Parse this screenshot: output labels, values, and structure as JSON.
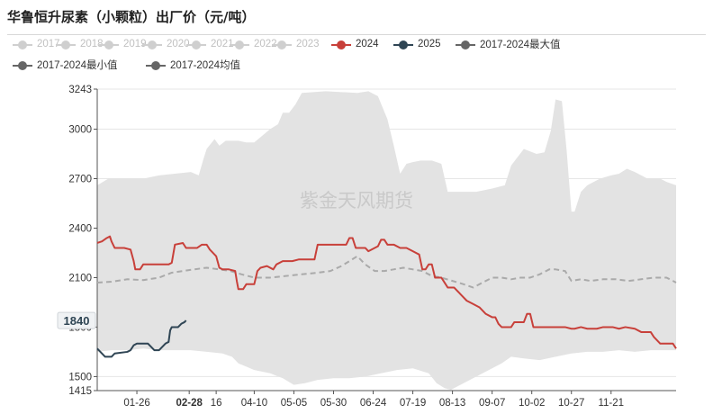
{
  "chart": {
    "title": "华鲁恒升尿素（小颗粒）出厂价（元/吨）",
    "watermark": "紫金天风期货",
    "legend": [
      {
        "label": "2017",
        "color": "#cfcfcf",
        "inactive": true
      },
      {
        "label": "2018",
        "color": "#cfcfcf",
        "inactive": true
      },
      {
        "label": "2019",
        "color": "#cfcfcf",
        "inactive": true
      },
      {
        "label": "2020",
        "color": "#cfcfcf",
        "inactive": true
      },
      {
        "label": "2021",
        "color": "#cfcfcf",
        "inactive": true
      },
      {
        "label": "2022",
        "color": "#cfcfcf",
        "inactive": true
      },
      {
        "label": "2023",
        "color": "#cfcfcf",
        "inactive": true
      },
      {
        "label": "2024",
        "color": "#c8403a",
        "inactive": false
      },
      {
        "label": "2025",
        "color": "#2f4554",
        "inactive": false
      },
      {
        "label": "2017-2024最大值",
        "color": "#666666",
        "inactive": false
      },
      {
        "label": "2017-2024最小值",
        "color": "#666666",
        "inactive": false
      },
      {
        "label": "2017-2024均值",
        "color": "#666666",
        "inactive": false
      }
    ],
    "tooltip_value": "1840"
  },
  "chart_data": {
    "type": "line",
    "title": "华鲁恒升尿素（小颗粒）出厂价（元/吨）",
    "ylim": [
      1415,
      3243
    ],
    "yticks": [
      "3243",
      "3000",
      "2700",
      "2400",
      "2100",
      "1800",
      "1500",
      "1415"
    ],
    "xlim_day": [
      1,
      366
    ],
    "xticks": [
      {
        "label": "01-26",
        "day": 26
      },
      {
        "label": "02-28",
        "day": 59,
        "highlight": true
      },
      {
        "label": "16",
        "day": 76
      },
      {
        "label": "04-10",
        "day": 100
      },
      {
        "label": "05-05",
        "day": 125
      },
      {
        "label": "05-30",
        "day": 150
      },
      {
        "label": "06-24",
        "day": 175
      },
      {
        "label": "07-19",
        "day": 200
      },
      {
        "label": "08-13",
        "day": 225
      },
      {
        "label": "09-07",
        "day": 250
      },
      {
        "label": "10-02",
        "day": 275
      },
      {
        "label": "10-27",
        "day": 300
      },
      {
        "label": "11-21",
        "day": 325
      }
    ],
    "band_max": [
      [
        1,
        2660
      ],
      [
        8,
        2700
      ],
      [
        15,
        2700
      ],
      [
        30,
        2700
      ],
      [
        40,
        2720
      ],
      [
        50,
        2730
      ],
      [
        60,
        2740
      ],
      [
        65,
        2720
      ],
      [
        68,
        2820
      ],
      [
        70,
        2880
      ],
      [
        75,
        2940
      ],
      [
        78,
        2900
      ],
      [
        82,
        2930
      ],
      [
        90,
        2930
      ],
      [
        95,
        2920
      ],
      [
        100,
        2920
      ],
      [
        105,
        2960
      ],
      [
        110,
        3000
      ],
      [
        115,
        3030
      ],
      [
        118,
        3100
      ],
      [
        122,
        3100
      ],
      [
        126,
        3150
      ],
      [
        130,
        3220
      ],
      [
        145,
        3230
      ],
      [
        165,
        3220
      ],
      [
        172,
        3230
      ],
      [
        178,
        3200
      ],
      [
        184,
        3060
      ],
      [
        188,
        2900
      ],
      [
        192,
        2730
      ],
      [
        196,
        2790
      ],
      [
        200,
        2800
      ],
      [
        205,
        2810
      ],
      [
        212,
        2810
      ],
      [
        218,
        2790
      ],
      [
        222,
        2620
      ],
      [
        225,
        2620
      ],
      [
        232,
        2620
      ],
      [
        240,
        2620
      ],
      [
        250,
        2640
      ],
      [
        258,
        2660
      ],
      [
        262,
        2780
      ],
      [
        270,
        2880
      ],
      [
        278,
        2850
      ],
      [
        283,
        2860
      ],
      [
        287,
        2990
      ],
      [
        290,
        3180
      ],
      [
        294,
        3170
      ],
      [
        297,
        2870
      ],
      [
        300,
        2500
      ],
      [
        302,
        2500
      ],
      [
        306,
        2620
      ],
      [
        310,
        2660
      ],
      [
        318,
        2700
      ],
      [
        325,
        2720
      ],
      [
        330,
        2730
      ],
      [
        335,
        2760
      ],
      [
        340,
        2740
      ],
      [
        348,
        2700
      ],
      [
        356,
        2700
      ],
      [
        360,
        2680
      ],
      [
        366,
        2660
      ]
    ],
    "band_min": [
      [
        1,
        1650
      ],
      [
        10,
        1660
      ],
      [
        20,
        1660
      ],
      [
        30,
        1670
      ],
      [
        40,
        1660
      ],
      [
        50,
        1660
      ],
      [
        60,
        1660
      ],
      [
        70,
        1650
      ],
      [
        80,
        1640
      ],
      [
        86,
        1620
      ],
      [
        90,
        1580
      ],
      [
        95,
        1560
      ],
      [
        100,
        1540
      ],
      [
        110,
        1520
      ],
      [
        118,
        1490
      ],
      [
        125,
        1450
      ],
      [
        132,
        1460
      ],
      [
        140,
        1480
      ],
      [
        150,
        1490
      ],
      [
        160,
        1490
      ],
      [
        170,
        1500
      ],
      [
        180,
        1520
      ],
      [
        190,
        1540
      ],
      [
        200,
        1550
      ],
      [
        210,
        1520
      ],
      [
        215,
        1460
      ],
      [
        220,
        1430
      ],
      [
        224,
        1420
      ],
      [
        230,
        1450
      ],
      [
        238,
        1490
      ],
      [
        244,
        1520
      ],
      [
        250,
        1550
      ],
      [
        256,
        1580
      ],
      [
        262,
        1620
      ],
      [
        270,
        1610
      ],
      [
        280,
        1600
      ],
      [
        290,
        1620
      ],
      [
        300,
        1640
      ],
      [
        310,
        1650
      ],
      [
        320,
        1650
      ],
      [
        330,
        1660
      ],
      [
        340,
        1650
      ],
      [
        350,
        1660
      ],
      [
        360,
        1660
      ],
      [
        366,
        1660
      ]
    ],
    "series": [
      {
        "name": "2017-2024均值",
        "color": "#aaaaaa",
        "style": "dashed",
        "points": [
          [
            1,
            2070
          ],
          [
            10,
            2075
          ],
          [
            20,
            2090
          ],
          [
            30,
            2085
          ],
          [
            40,
            2100
          ],
          [
            48,
            2130
          ],
          [
            55,
            2140
          ],
          [
            62,
            2150
          ],
          [
            70,
            2160
          ],
          [
            78,
            2150
          ],
          [
            85,
            2140
          ],
          [
            92,
            2120
          ],
          [
            100,
            2100
          ],
          [
            110,
            2100
          ],
          [
            120,
            2110
          ],
          [
            130,
            2120
          ],
          [
            140,
            2130
          ],
          [
            148,
            2140
          ],
          [
            155,
            2170
          ],
          [
            160,
            2200
          ],
          [
            165,
            2230
          ],
          [
            170,
            2180
          ],
          [
            176,
            2140
          ],
          [
            182,
            2140
          ],
          [
            188,
            2150
          ],
          [
            194,
            2160
          ],
          [
            200,
            2150
          ],
          [
            206,
            2140
          ],
          [
            212,
            2110
          ],
          [
            218,
            2100
          ],
          [
            225,
            2080
          ],
          [
            232,
            2060
          ],
          [
            238,
            2040
          ],
          [
            244,
            2070
          ],
          [
            250,
            2100
          ],
          [
            256,
            2100
          ],
          [
            262,
            2090
          ],
          [
            268,
            2100
          ],
          [
            274,
            2100
          ],
          [
            280,
            2120
          ],
          [
            286,
            2150
          ],
          [
            290,
            2150
          ],
          [
            296,
            2140
          ],
          [
            300,
            2080
          ],
          [
            306,
            2090
          ],
          [
            312,
            2080
          ],
          [
            320,
            2090
          ],
          [
            328,
            2090
          ],
          [
            336,
            2080
          ],
          [
            344,
            2090
          ],
          [
            352,
            2100
          ],
          [
            360,
            2100
          ],
          [
            366,
            2070
          ]
        ]
      },
      {
        "name": "2024",
        "color": "#c8403a",
        "style": "solid",
        "points": [
          [
            1,
            2310
          ],
          [
            4,
            2320
          ],
          [
            7,
            2340
          ],
          [
            9,
            2350
          ],
          [
            10,
            2320
          ],
          [
            12,
            2280
          ],
          [
            18,
            2280
          ],
          [
            22,
            2270
          ],
          [
            24,
            2200
          ],
          [
            25,
            2150
          ],
          [
            28,
            2150
          ],
          [
            30,
            2180
          ],
          [
            36,
            2180
          ],
          [
            46,
            2180
          ],
          [
            48,
            2190
          ],
          [
            50,
            2300
          ],
          [
            55,
            2310
          ],
          [
            57,
            2280
          ],
          [
            60,
            2280
          ],
          [
            64,
            2280
          ],
          [
            67,
            2300
          ],
          [
            70,
            2300
          ],
          [
            72,
            2270
          ],
          [
            76,
            2230
          ],
          [
            78,
            2160
          ],
          [
            80,
            2150
          ],
          [
            84,
            2150
          ],
          [
            88,
            2140
          ],
          [
            89,
            2080
          ],
          [
            90,
            2030
          ],
          [
            93,
            2030
          ],
          [
            95,
            2060
          ],
          [
            100,
            2060
          ],
          [
            102,
            2140
          ],
          [
            104,
            2160
          ],
          [
            108,
            2170
          ],
          [
            112,
            2150
          ],
          [
            114,
            2180
          ],
          [
            118,
            2200
          ],
          [
            124,
            2200
          ],
          [
            128,
            2210
          ],
          [
            138,
            2210
          ],
          [
            140,
            2300
          ],
          [
            146,
            2300
          ],
          [
            158,
            2300
          ],
          [
            160,
            2340
          ],
          [
            162,
            2340
          ],
          [
            164,
            2280
          ],
          [
            170,
            2280
          ],
          [
            172,
            2260
          ],
          [
            178,
            2290
          ],
          [
            180,
            2330
          ],
          [
            182,
            2330
          ],
          [
            184,
            2300
          ],
          [
            188,
            2300
          ],
          [
            192,
            2280
          ],
          [
            196,
            2280
          ],
          [
            200,
            2260
          ],
          [
            204,
            2240
          ],
          [
            206,
            2150
          ],
          [
            208,
            2150
          ],
          [
            210,
            2180
          ],
          [
            212,
            2180
          ],
          [
            214,
            2100
          ],
          [
            218,
            2100
          ],
          [
            222,
            2040
          ],
          [
            226,
            2040
          ],
          [
            230,
            2000
          ],
          [
            234,
            1960
          ],
          [
            238,
            1940
          ],
          [
            242,
            1920
          ],
          [
            246,
            1880
          ],
          [
            250,
            1860
          ],
          [
            252,
            1860
          ],
          [
            254,
            1820
          ],
          [
            256,
            1800
          ],
          [
            262,
            1800
          ],
          [
            264,
            1830
          ],
          [
            270,
            1830
          ],
          [
            272,
            1880
          ],
          [
            274,
            1880
          ],
          [
            276,
            1800
          ],
          [
            290,
            1800
          ],
          [
            296,
            1800
          ],
          [
            300,
            1790
          ],
          [
            302,
            1790
          ],
          [
            306,
            1800
          ],
          [
            310,
            1790
          ],
          [
            316,
            1790
          ],
          [
            320,
            1800
          ],
          [
            326,
            1800
          ],
          [
            330,
            1790
          ],
          [
            334,
            1800
          ],
          [
            340,
            1790
          ],
          [
            344,
            1770
          ],
          [
            350,
            1770
          ],
          [
            352,
            1740
          ],
          [
            356,
            1700
          ],
          [
            360,
            1700
          ],
          [
            364,
            1700
          ],
          [
            366,
            1670
          ]
        ]
      },
      {
        "name": "2025",
        "color": "#2f4554",
        "style": "solid",
        "points": [
          [
            1,
            1670
          ],
          [
            4,
            1640
          ],
          [
            6,
            1620
          ],
          [
            8,
            1620
          ],
          [
            10,
            1620
          ],
          [
            12,
            1640
          ],
          [
            20,
            1650
          ],
          [
            22,
            1660
          ],
          [
            24,
            1690
          ],
          [
            26,
            1700
          ],
          [
            28,
            1700
          ],
          [
            30,
            1700
          ],
          [
            33,
            1700
          ],
          [
            35,
            1680
          ],
          [
            37,
            1660
          ],
          [
            40,
            1660
          ],
          [
            42,
            1680
          ],
          [
            44,
            1700
          ],
          [
            46,
            1710
          ],
          [
            47,
            1780
          ],
          [
            48,
            1800
          ],
          [
            52,
            1800
          ],
          [
            54,
            1820
          ],
          [
            56,
            1830
          ],
          [
            57,
            1840
          ]
        ]
      }
    ]
  }
}
